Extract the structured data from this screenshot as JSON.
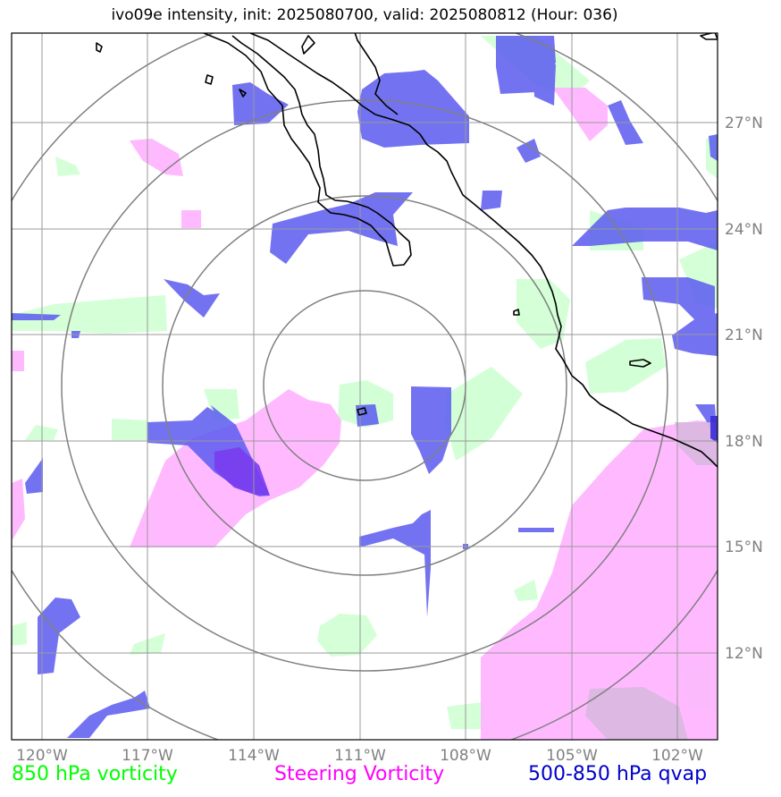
{
  "title": "ivo09e intensity, init: 2025080700, valid: 2025080812 (Hour: 036)",
  "map": {
    "lon_range": [
      -120.9,
      -100.8
    ],
    "lat_range": [
      9.9,
      29.9
    ],
    "center": {
      "lon": -111.0,
      "lat": 19.5
    },
    "range_rings": 4,
    "gridlines": true
  },
  "x_ticks": [
    "120°W",
    "117°W",
    "114°W",
    "111°W",
    "108°W",
    "105°W",
    "102°W"
  ],
  "y_ticks": [
    "27°N",
    "24°N",
    "21°N",
    "18°N",
    "15°N",
    "12°N"
  ],
  "legend": {
    "vort850": {
      "label": "850 hPa vorticity",
      "color": "#00ff00"
    },
    "steering": {
      "label": "Steering Vorticity",
      "color": "#ff00ff"
    },
    "qvap": {
      "label": "500-850 hPa qvap",
      "color": "#0000cc"
    }
  },
  "colors": {
    "green_fill": "#ccffd0",
    "magenta_fill": "#ffb3ff",
    "blue_fill": "#5b5bf0",
    "grid": "#999999",
    "rings": "#808080",
    "coast": "#000000"
  }
}
